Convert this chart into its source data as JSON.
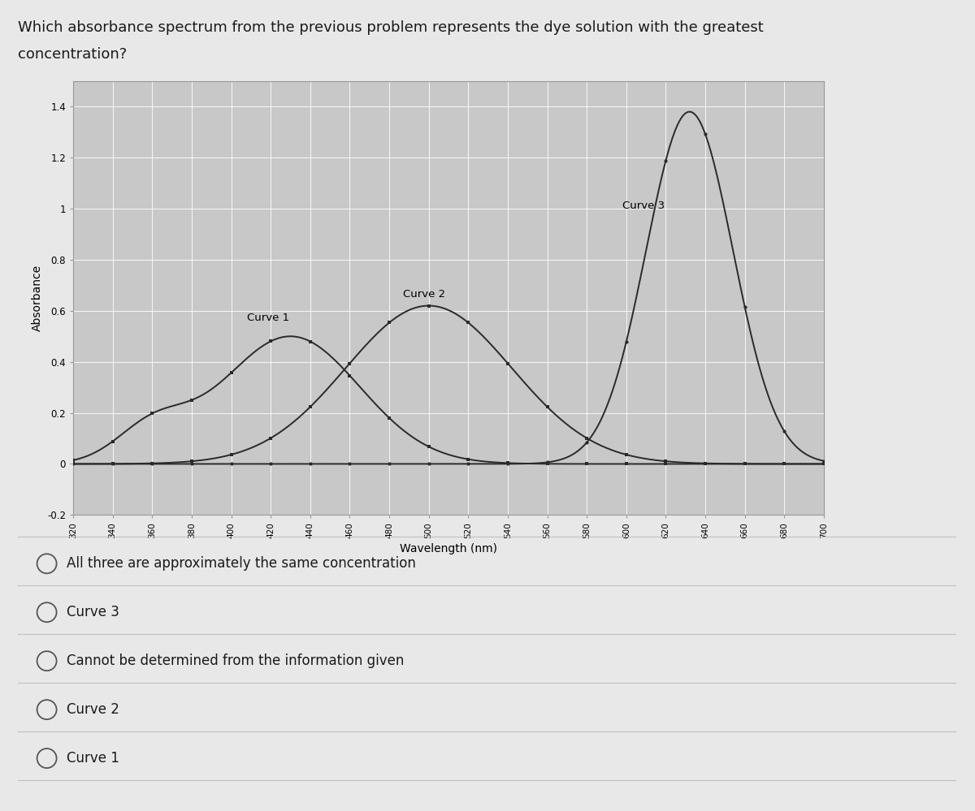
{
  "xlabel": "Wavelength (nm)",
  "ylabel": "Absorbance",
  "ylim": [
    -0.2,
    1.5
  ],
  "xlim": [
    320,
    700
  ],
  "ytick_vals": [
    -0.2,
    0,
    0.2,
    0.4,
    0.6,
    0.8,
    1.0,
    1.2,
    1.4
  ],
  "ytick_labels": [
    "-0.2",
    "0",
    "0.2",
    "0.4",
    "0.6",
    "0.8",
    "1",
    "1.2",
    "1.4"
  ],
  "page_bg": "#e8e8e8",
  "chart_bg": "#c8c8c8",
  "curve_color": "#2a2a2a",
  "question_line1": "Which absorbance spectrum from the previous problem represents the dye solution with the greatest",
  "question_line2": "concentration?",
  "choices": [
    "All three are approximately the same concentration",
    "Curve 3",
    "Cannot be determined from the information given",
    "Curve 2",
    "Curve 1"
  ],
  "curve1_label": "Curve 1",
  "curve2_label": "Curve 2",
  "curve3_label": "Curve 3",
  "curve1_peak": 430,
  "curve1_sigma": 35,
  "curve1_amp": 0.5,
  "curve1_secondary_peak": 360,
  "curve1_secondary_sigma": 18,
  "curve1_secondary_amp": 0.13,
  "curve2_peak": 500,
  "curve2_sigma": 42,
  "curve2_amp": 0.62,
  "curve3_peak": 632,
  "curve3_sigma": 22,
  "curve3_amp": 1.38
}
